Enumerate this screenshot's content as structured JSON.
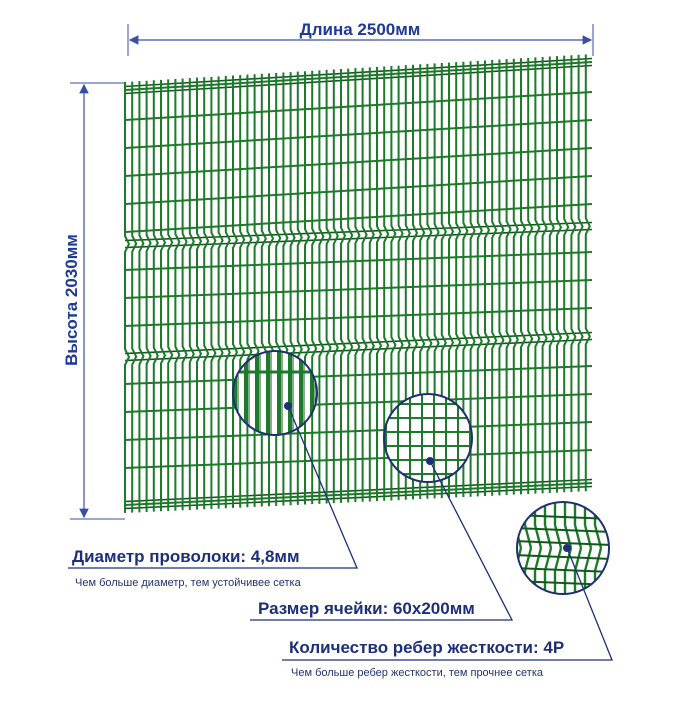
{
  "dimensions": {
    "length_label": "Длина 2500мм",
    "height_label": "Высота 2030мм"
  },
  "callouts": {
    "wire_diameter": {
      "label": "Диаметр проволоки: 4,8мм",
      "note": "Чем больше диаметр, тем устойчивее сетка"
    },
    "mesh_size": {
      "label": "Размер ячейки: 60х200мм"
    },
    "ribs": {
      "label": "Количество ребер жесткости: 4Р",
      "note": "Чем больше ребер жесткости, тем прочнее сетка"
    }
  },
  "colors": {
    "wire": "#1d7a2a",
    "wire_dark": "#0f5a1a",
    "accent": "#1f3a93",
    "label": "#1e2f7a"
  }
}
